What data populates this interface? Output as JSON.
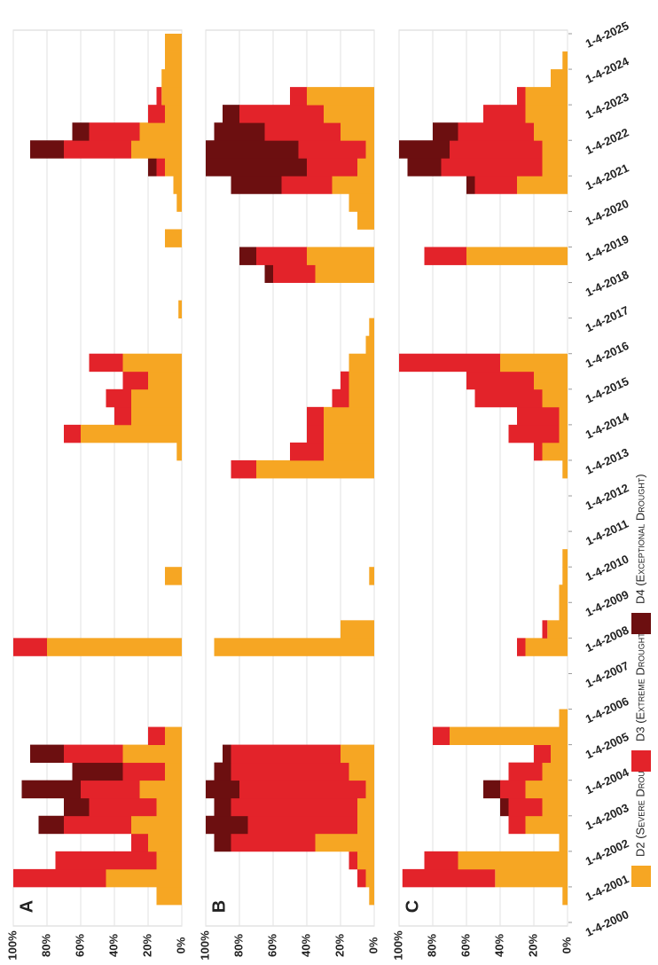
{
  "chart_data": [
    {
      "type": "area",
      "title": "A",
      "x": [
        2000,
        2000.5,
        2001,
        2001.5,
        2002,
        2002.5,
        2003,
        2003.5,
        2004,
        2004.5,
        2005,
        2005.5,
        2006,
        2006.5,
        2007,
        2007.5,
        2008,
        2008.5,
        2009,
        2009.5,
        2010,
        2010.5,
        2011,
        2011.5,
        2012,
        2012.5,
        2013,
        2013.5,
        2014,
        2014.5,
        2015,
        2015.5,
        2016,
        2016.5,
        2017,
        2017.5,
        2018,
        2018.5,
        2019,
        2019.5,
        2020,
        2020.5,
        2021,
        2021.5,
        2022,
        2022.5,
        2023,
        2023.5,
        2024,
        2024.5,
        2025
      ],
      "xlim": [
        2000,
        2025
      ],
      "ylim": [
        0,
        100
      ],
      "yticks": [
        {
          "value": 0,
          "label": "0%"
        },
        {
          "value": 20,
          "label": "20%"
        },
        {
          "value": 40,
          "label": "40%"
        },
        {
          "value": 60,
          "label": "60%"
        },
        {
          "value": 80,
          "label": "80%"
        },
        {
          "value": 100,
          "label": "100%"
        }
      ],
      "series": [
        {
          "name": "D2 (Severe Drought)",
          "color": "#f6a623",
          "values": [
            0,
            15,
            45,
            15,
            20,
            30,
            15,
            25,
            10,
            35,
            10,
            0,
            0,
            0,
            0,
            80,
            0,
            0,
            0,
            10,
            0,
            0,
            0,
            0,
            0,
            0,
            3,
            60,
            30,
            30,
            20,
            35,
            0,
            0,
            2,
            0,
            0,
            0,
            10,
            0,
            3,
            5,
            10,
            30,
            25,
            10,
            12,
            12,
            10,
            10,
            0
          ]
        },
        {
          "name": "D3 (Extreme Drought)",
          "color": "#e3232a",
          "values": [
            0,
            0,
            55,
            60,
            10,
            40,
            40,
            35,
            25,
            35,
            10,
            0,
            0,
            0,
            0,
            20,
            0,
            0,
            0,
            0,
            0,
            0,
            0,
            0,
            0,
            0,
            0,
            10,
            10,
            15,
            15,
            20,
            0,
            0,
            0,
            0,
            0,
            0,
            0,
            0,
            0,
            0,
            5,
            40,
            30,
            10,
            3,
            0,
            0,
            0,
            0
          ]
        },
        {
          "name": "D4 (Exceptional Drought)",
          "color": "#6c0f10",
          "values": [
            0,
            0,
            0,
            0,
            0,
            15,
            15,
            35,
            30,
            20,
            0,
            0,
            0,
            0,
            0,
            0,
            0,
            0,
            0,
            0,
            0,
            0,
            0,
            0,
            0,
            0,
            0,
            0,
            0,
            0,
            0,
            0,
            0,
            0,
            0,
            0,
            0,
            0,
            0,
            0,
            0,
            0,
            5,
            20,
            10,
            0,
            0,
            0,
            0,
            0,
            0
          ]
        }
      ]
    },
    {
      "type": "area",
      "title": "B",
      "x": [
        2000,
        2000.5,
        2001,
        2001.5,
        2002,
        2002.5,
        2003,
        2003.5,
        2004,
        2004.5,
        2005,
        2005.5,
        2006,
        2006.5,
        2007,
        2007.5,
        2008,
        2008.5,
        2009,
        2009.5,
        2010,
        2010.5,
        2011,
        2011.5,
        2012,
        2012.5,
        2013,
        2013.5,
        2014,
        2014.5,
        2015,
        2015.5,
        2016,
        2016.5,
        2017,
        2017.5,
        2018,
        2018.5,
        2019,
        2019.5,
        2020,
        2020.5,
        2021,
        2021.5,
        2022,
        2022.5,
        2023,
        2023.5,
        2024,
        2024.5,
        2025
      ],
      "xlim": [
        2000,
        2025
      ],
      "ylim": [
        0,
        100
      ],
      "yticks": [
        {
          "value": 0,
          "label": "0%"
        },
        {
          "value": 20,
          "label": "20%"
        },
        {
          "value": 40,
          "label": "40%"
        },
        {
          "value": 60,
          "label": "60%"
        },
        {
          "value": 80,
          "label": "80%"
        },
        {
          "value": 100,
          "label": "100%"
        }
      ],
      "series": [
        {
          "color": "#f6a623",
          "values": [
            0,
            3,
            5,
            10,
            35,
            10,
            10,
            5,
            15,
            20,
            0,
            0,
            0,
            0,
            0,
            95,
            20,
            0,
            0,
            3,
            0,
            0,
            0,
            0,
            0,
            70,
            30,
            30,
            30,
            15,
            15,
            15,
            5,
            3,
            0,
            0,
            35,
            40,
            0,
            10,
            15,
            25,
            10,
            5,
            20,
            30,
            40,
            0,
            0,
            0,
            0
          ]
        },
        {
          "color": "#e3232a",
          "values": [
            0,
            0,
            5,
            5,
            50,
            65,
            75,
            75,
            70,
            65,
            0,
            0,
            0,
            0,
            0,
            0,
            0,
            0,
            0,
            0,
            0,
            0,
            0,
            0,
            0,
            15,
            20,
            10,
            10,
            10,
            5,
            0,
            0,
            0,
            0,
            0,
            25,
            30,
            0,
            0,
            0,
            30,
            30,
            40,
            45,
            50,
            10,
            0,
            0,
            0,
            0
          ]
        },
        {
          "color": "#6c0f10",
          "values": [
            0,
            0,
            0,
            0,
            10,
            25,
            10,
            20,
            10,
            5,
            0,
            0,
            0,
            0,
            0,
            0,
            0,
            0,
            0,
            0,
            0,
            0,
            0,
            0,
            0,
            0,
            0,
            0,
            0,
            0,
            0,
            0,
            0,
            0,
            0,
            0,
            5,
            10,
            0,
            0,
            0,
            30,
            60,
            55,
            30,
            10,
            0,
            0,
            0,
            0,
            0
          ]
        }
      ]
    },
    {
      "type": "area",
      "title": "C",
      "x": [
        2000,
        2000.5,
        2001,
        2001.5,
        2002,
        2002.5,
        2003,
        2003.5,
        2004,
        2004.5,
        2005,
        2005.5,
        2006,
        2006.5,
        2007,
        2007.5,
        2008,
        2008.5,
        2009,
        2009.5,
        2010,
        2010.5,
        2011,
        2011.5,
        2012,
        2012.5,
        2013,
        2013.5,
        2014,
        2014.5,
        2015,
        2015.5,
        2016,
        2016.5,
        2017,
        2017.5,
        2018,
        2018.5,
        2019,
        2019.5,
        2020,
        2020.5,
        2021,
        2021.5,
        2022,
        2022.5,
        2023,
        2023.5,
        2024,
        2024.5,
        2025
      ],
      "xlim": [
        2000,
        2025
      ],
      "ylim": [
        0,
        100
      ],
      "xticks": [
        {
          "value": 2000,
          "label": "1-4-2000"
        },
        {
          "value": 2001,
          "label": "1-4-2001"
        },
        {
          "value": 2002,
          "label": "1-4-2002"
        },
        {
          "value": 2003,
          "label": "1-4-2003"
        },
        {
          "value": 2004,
          "label": "1-4-2004"
        },
        {
          "value": 2005,
          "label": "1-4-2005"
        },
        {
          "value": 2006,
          "label": "1-4-2006"
        },
        {
          "value": 2007,
          "label": "1-4-2007"
        },
        {
          "value": 2008,
          "label": "1-4-2008"
        },
        {
          "value": 2009,
          "label": "1-4-2009"
        },
        {
          "value": 2010,
          "label": "1-4-2010"
        },
        {
          "value": 2011,
          "label": "1-4-2011"
        },
        {
          "value": 2012,
          "label": "1-4-2012"
        },
        {
          "value": 2013,
          "label": "1-4-2013"
        },
        {
          "value": 2014,
          "label": "1-4-2014"
        },
        {
          "value": 2015,
          "label": "1-4-2015"
        },
        {
          "value": 2016,
          "label": "1-4-2016"
        },
        {
          "value": 2017,
          "label": "1-4-2017"
        },
        {
          "value": 2018,
          "label": "1-4-2018"
        },
        {
          "value": 2019,
          "label": "1-4-2019"
        },
        {
          "value": 2020,
          "label": "1-4-2020"
        },
        {
          "value": 2021,
          "label": "1-4-2021"
        },
        {
          "value": 2022,
          "label": "1-4-2022"
        },
        {
          "value": 2023,
          "label": "1-4-2023"
        },
        {
          "value": 2024,
          "label": "1-4-2024"
        },
        {
          "value": 2025,
          "label": "1-4-2025"
        }
      ],
      "yticks": [
        {
          "value": 0,
          "label": "0%"
        },
        {
          "value": 20,
          "label": "20%"
        },
        {
          "value": 40,
          "label": "40%"
        },
        {
          "value": 60,
          "label": "60%"
        },
        {
          "value": 80,
          "label": "80%"
        },
        {
          "value": 100,
          "label": "100%"
        }
      ],
      "series": [
        {
          "color": "#f6a623",
          "values": [
            0,
            3,
            43,
            65,
            5,
            25,
            15,
            25,
            15,
            10,
            70,
            5,
            0,
            0,
            0,
            25,
            12,
            5,
            5,
            3,
            3,
            0,
            0,
            0,
            0,
            3,
            15,
            5,
            5,
            15,
            20,
            40,
            0,
            0,
            0,
            0,
            0,
            60,
            0,
            0,
            0,
            30,
            15,
            15,
            20,
            25,
            25,
            10,
            3,
            0,
            0
          ]
        },
        {
          "color": "#e3232a",
          "values": [
            0,
            0,
            55,
            20,
            0,
            10,
            20,
            15,
            20,
            10,
            10,
            0,
            0,
            0,
            0,
            5,
            3,
            0,
            0,
            0,
            0,
            0,
            0,
            0,
            0,
            0,
            5,
            30,
            25,
            40,
            40,
            60,
            0,
            0,
            0,
            0,
            0,
            25,
            0,
            0,
            0,
            25,
            60,
            55,
            45,
            25,
            5,
            0,
            0,
            0,
            0
          ]
        },
        {
          "color": "#6c0f10",
          "values": [
            0,
            0,
            0,
            0,
            0,
            0,
            5,
            10,
            0,
            0,
            0,
            0,
            0,
            0,
            0,
            0,
            0,
            0,
            0,
            0,
            0,
            0,
            0,
            0,
            0,
            0,
            0,
            0,
            0,
            0,
            0,
            0,
            0,
            0,
            0,
            0,
            0,
            0,
            0,
            0,
            0,
            5,
            20,
            30,
            15,
            0,
            0,
            0,
            0,
            0,
            0
          ]
        }
      ]
    }
  ]
}
